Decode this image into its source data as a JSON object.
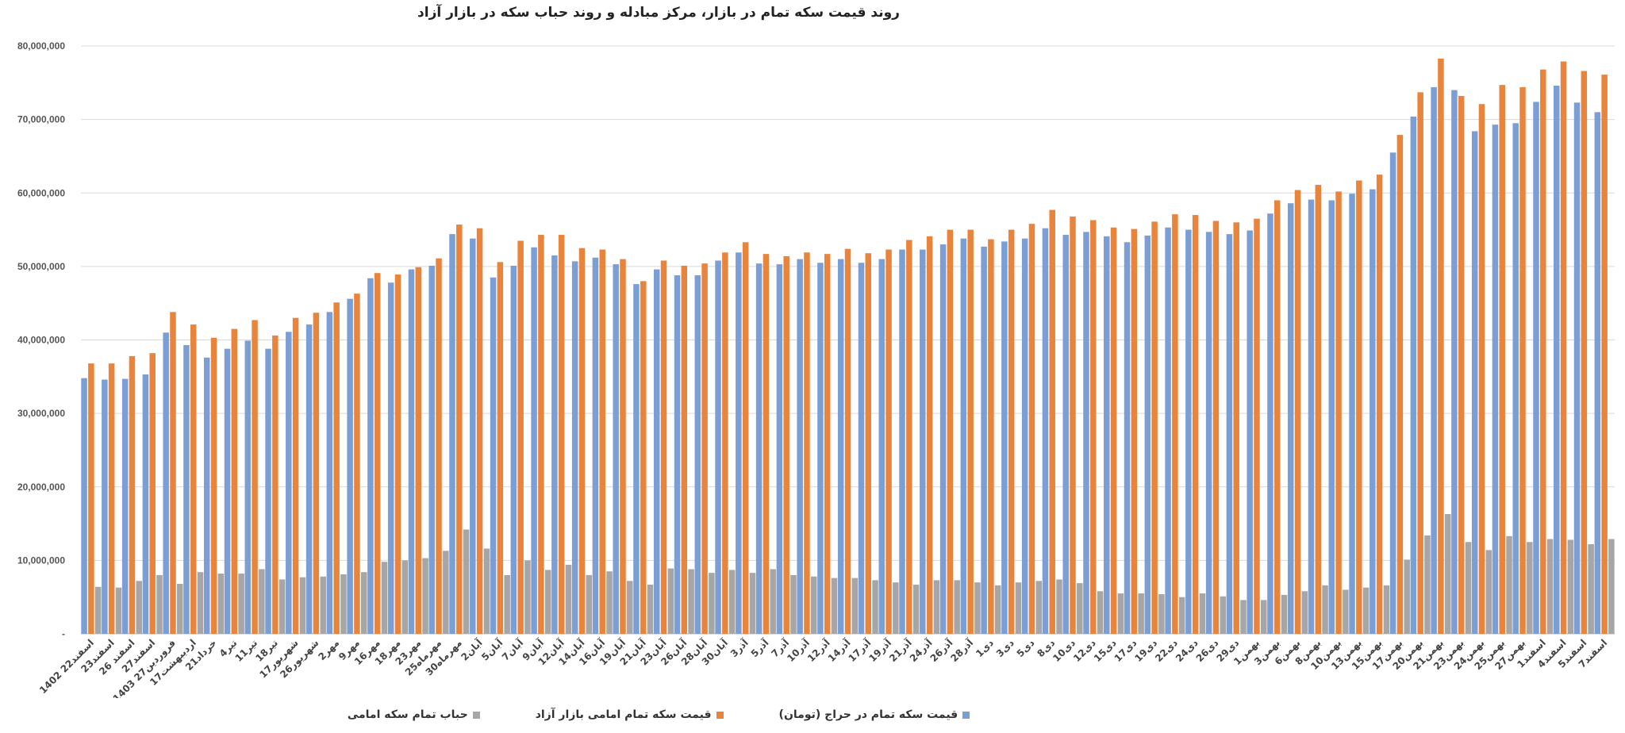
{
  "chart_data": {
    "type": "bar",
    "title": "روند قیمت سکه تمام در بازار، مرکز مبادله و روند حباب سکه در بازار آزاد",
    "ylim": [
      0,
      80000000
    ],
    "yticks": [
      "80,000,000",
      "70,000,000",
      "60,000,000",
      "50,000,000",
      "40,000,000",
      "30,000,000",
      "20,000,000",
      "10,000,000",
      "-"
    ],
    "grid": true,
    "legend_position": "bottom",
    "categories": [
      "1402 22اسفند",
      "23اسفند",
      "26 اسفند",
      "27اسفند",
      "1403 27فروردین",
      "17اردیبهشت",
      "21خرداد",
      "4تیر",
      "11تیر",
      "18تیر",
      "17شهریور",
      "26شهریور",
      "2مهر",
      "9مهر",
      "16مهر",
      "18مهر",
      "23مهر",
      "25مهرماه",
      "30مهرماه",
      "2آبان",
      "5آبان",
      "7آبان",
      "9آبان",
      "12آبان",
      "14آبان",
      "16آبان",
      "19آبان",
      "21آبان",
      "23آبان",
      "26آبان",
      "28آبان",
      "30آبان",
      "3آذر",
      "5آذر",
      "7آذر",
      "10آذر",
      "12آذر",
      "14آذر",
      "17آذر",
      "19آذر",
      "21آذر",
      "24آذر",
      "26آذر",
      "28آذر",
      "1دی",
      "3دی",
      "5دی",
      "8دی",
      "10دی",
      "12دی",
      "15دی",
      "17دی",
      "19دی",
      "22دی",
      "24دی",
      "26دی",
      "29دی",
      "1بهمن",
      "3بهمن",
      "6بهمن",
      "8بهمن",
      "10بهمن",
      "13بهمن",
      "15بهمن",
      "17بهمن",
      "20بهمن",
      "21بهمن",
      "23بهمن",
      "24بهمن",
      "25بهمن",
      "27بهمن",
      "1اسفند",
      "4اسفند",
      "5اسفند",
      "7اسفند"
    ],
    "series": [
      {
        "name": "قیمت سکه تمام در حراج (تومان)",
        "color": "#7b9fd4",
        "values": [
          34800000,
          34600000,
          34700000,
          35300000,
          41000000,
          39300000,
          37600000,
          38800000,
          39900000,
          38800000,
          41100000,
          42100000,
          43800000,
          45600000,
          48400000,
          47800000,
          49600000,
          50100000,
          54400000,
          53800000,
          48500000,
          50100000,
          52600000,
          51500000,
          50700000,
          51200000,
          50300000,
          47600000,
          49600000,
          48800000,
          48800000,
          50800000,
          51900000,
          50400000,
          50300000,
          51000000,
          50500000,
          51000000,
          50500000,
          51000000,
          52300000,
          52300000,
          53000000,
          53800000,
          52700000,
          53400000,
          53800000,
          55200000,
          54300000,
          54700000,
          54100000,
          53300000,
          54200000,
          55300000,
          55000000,
          54700000,
          54400000,
          54900000,
          57200000,
          58600000,
          59100000,
          59000000,
          59900000,
          60500000,
          65500000,
          70400000,
          74400000,
          74000000,
          68400000,
          69300000,
          69500000,
          72400000,
          74600000,
          72300000,
          71000000
        ]
      },
      {
        "name": "قیمت سکه تمام امامی بازار آزاد",
        "color": "#e9843c",
        "values": [
          36800000,
          36800000,
          37800000,
          38200000,
          43800000,
          42100000,
          40300000,
          41500000,
          42700000,
          40600000,
          43000000,
          43700000,
          45100000,
          46300000,
          49100000,
          48900000,
          49900000,
          51100000,
          55700000,
          55200000,
          50600000,
          53500000,
          54300000,
          54300000,
          52500000,
          52300000,
          51000000,
          48000000,
          50800000,
          50100000,
          50400000,
          51900000,
          53300000,
          51700000,
          51400000,
          51900000,
          51700000,
          52400000,
          51800000,
          52300000,
          53600000,
          54100000,
          55000000,
          55000000,
          53700000,
          55000000,
          55800000,
          57700000,
          56800000,
          56300000,
          55300000,
          55100000,
          56100000,
          57100000,
          57000000,
          56200000,
          56000000,
          56500000,
          59000000,
          60400000,
          61100000,
          60200000,
          61700000,
          62500000,
          67900000,
          73700000,
          78300000,
          73200000,
          72100000,
          74700000,
          74400000,
          76800000,
          77900000,
          76600000,
          76100000
        ]
      },
      {
        "name": "حباب تمام سکه امامی",
        "color": "#a6a6a6",
        "values": [
          6400000,
          6300000,
          7200000,
          8000000,
          6800000,
          8400000,
          8200000,
          8200000,
          8800000,
          7400000,
          7700000,
          7800000,
          8100000,
          8400000,
          9800000,
          10000000,
          10300000,
          11300000,
          14200000,
          11600000,
          8000000,
          10000000,
          8700000,
          9400000,
          8000000,
          8500000,
          7200000,
          6700000,
          8900000,
          8800000,
          8300000,
          8700000,
          8300000,
          8800000,
          8000000,
          7800000,
          7600000,
          7600000,
          7300000,
          7000000,
          6700000,
          7300000,
          7300000,
          7000000,
          6600000,
          7000000,
          7200000,
          7400000,
          6900000,
          5800000,
          5500000,
          5500000,
          5400000,
          5000000,
          5500000,
          5100000,
          4600000,
          4600000,
          5300000,
          5800000,
          6600000,
          6000000,
          6300000,
          6600000,
          10100000,
          13400000,
          16300000,
          12500000,
          11400000,
          13300000,
          12500000,
          12900000,
          12800000,
          12200000,
          12900000
        ]
      }
    ]
  }
}
